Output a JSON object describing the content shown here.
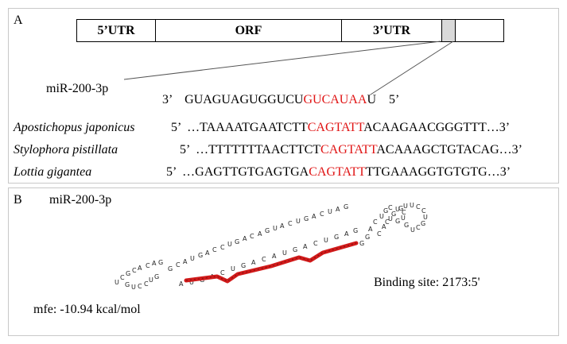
{
  "panel_a": {
    "label": "A",
    "gene": {
      "segments": [
        "5’UTR",
        "ORF",
        "3’UTR",
        "",
        ""
      ]
    },
    "mirna": {
      "name": "miR-200-3p",
      "three_prime": "3’",
      "seq_prefix": "GUAGUAGUGGUCU",
      "seed": "GUCAUAA",
      "seq_suffix": "U",
      "five_prime": "5’"
    },
    "targets": [
      {
        "species": "Apostichopus japonicus",
        "five_prime": "5’",
        "prefix": "…TAAAATGAATCTT",
        "site": "CAGTATT",
        "suffix": "ACAAGAACGGGTTT…3’"
      },
      {
        "species": "Stylophora pistillata",
        "five_prime": "5’",
        "prefix": "…TTTTTTTAACTTCT",
        "site": "CAGTATT",
        "suffix": "ACAAAGCTGTACAG…3’"
      },
      {
        "species": "Lottia gigantea",
        "five_prime": "5’",
        "prefix": "…GAGTTGTGAGTGA",
        "site": "CAGTATT",
        "suffix": "TTGAAAGGTGTGTG…3’"
      }
    ]
  },
  "panel_b": {
    "label": "B",
    "mirna_name": "miR-200-3p",
    "binding_site": "Binding site: 2173:5'",
    "mfe": "mfe: -10.94 kcal/mol"
  },
  "colors": {
    "seed": "#e01414",
    "hairpin_line": "#d11a1a",
    "highlight_box": "#d9d9d9"
  }
}
